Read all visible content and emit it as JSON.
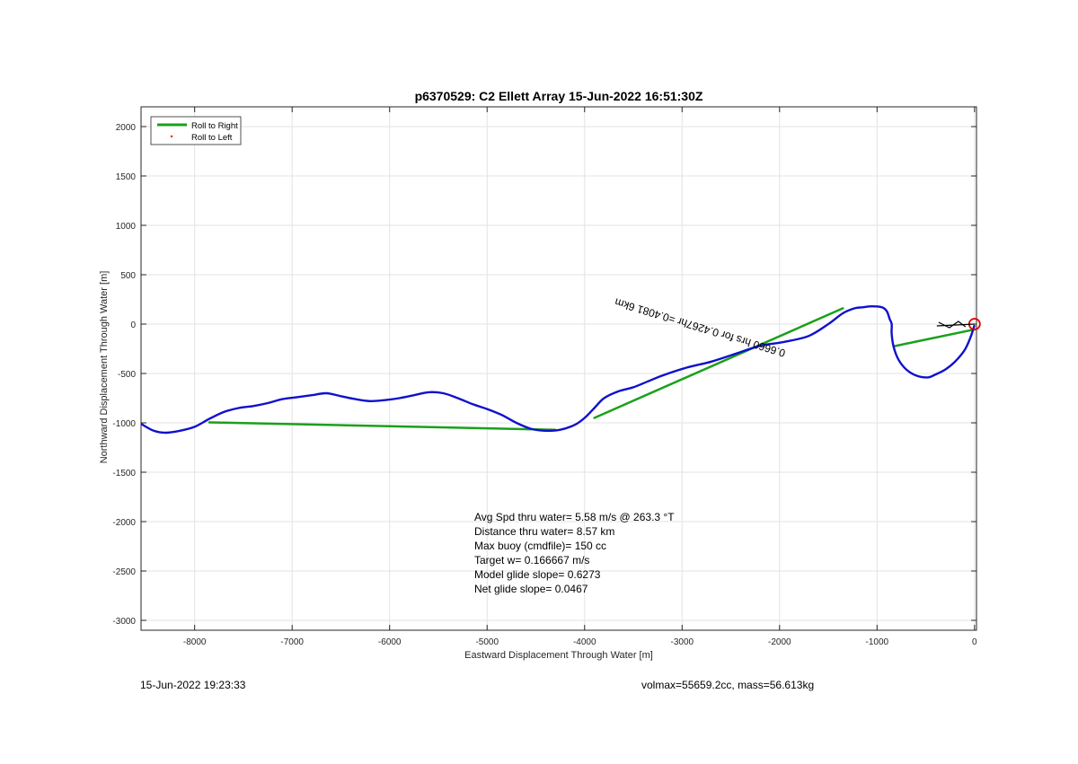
{
  "chart_data": {
    "type": "line",
    "title": "p6370529: C2 Ellett Array 15-Jun-2022 16:51:30Z",
    "xlabel": "Eastward Displacement Through Water [m]",
    "ylabel": "Northward Displacement Through Water [m]",
    "xlim": [
      -8550,
      20
    ],
    "ylim": [
      -3100,
      2200
    ],
    "xticks": [
      -8000,
      -7000,
      -6000,
      -5000,
      -4000,
      -3000,
      -2000,
      -1000,
      0
    ],
    "yticks": [
      -3000,
      -2500,
      -2000,
      -1500,
      -1000,
      -500,
      0,
      500,
      1000,
      1500,
      2000
    ],
    "grid": true,
    "legend_placement": "top-left",
    "legend": [
      {
        "label": "Roll to Right",
        "color": "#1aa01a",
        "style": "line"
      },
      {
        "label": "Roll to Left",
        "color": "#ff0000",
        "style": "dot"
      }
    ],
    "series": [
      {
        "name": "track",
        "color": "#1010cc",
        "x": [
          0,
          -40,
          -100,
          -200,
          -300,
          -400,
          -480,
          -600,
          -700,
          -780,
          -830,
          -850,
          -850,
          -870,
          -900,
          -950,
          -1050,
          -1150,
          -1230,
          -1350,
          -1500,
          -1700,
          -1950,
          -2200,
          -2450,
          -2700,
          -2950,
          -3200,
          -3350,
          -3500,
          -3650,
          -3800,
          -3900,
          -4000,
          -4100,
          -4250,
          -4400,
          -4550,
          -4700,
          -4850,
          -5000,
          -5150,
          -5300,
          -5450,
          -5600,
          -5750,
          -5900,
          -6050,
          -6200,
          -6350,
          -6500,
          -6650,
          -6800,
          -6950,
          -7100,
          -7250,
          -7400,
          -7550,
          -7700,
          -7850,
          -8000,
          -8150,
          -8300,
          -8420,
          -8550
        ],
        "y": [
          -10,
          -130,
          -260,
          -380,
          -460,
          -510,
          -540,
          -520,
          -460,
          -360,
          -230,
          -100,
          0,
          50,
          130,
          170,
          180,
          170,
          160,
          110,
          0,
          -120,
          -180,
          -220,
          -300,
          -380,
          -440,
          -520,
          -580,
          -640,
          -680,
          -750,
          -850,
          -950,
          -1020,
          -1070,
          -1080,
          -1060,
          -1000,
          -920,
          -860,
          -810,
          -750,
          -700,
          -690,
          -720,
          -750,
          -770,
          -780,
          -760,
          -730,
          -700,
          -720,
          -740,
          -760,
          -800,
          -830,
          -850,
          -890,
          -960,
          -1040,
          -1080,
          -1100,
          -1080,
          -1010
        ]
      },
      {
        "name": "Roll to Right",
        "color": "#1aa01a",
        "segments": [
          {
            "x": [
              -5,
              -830
            ],
            "y": [
              -55,
              -225
            ]
          },
          {
            "x": [
              -1350,
              -3900
            ],
            "y": [
              160,
              -950
            ]
          },
          {
            "x": [
              -4300,
              -7850
            ],
            "y": [
              -1070,
              -995
            ]
          }
        ]
      }
    ],
    "annotation_rotated": "0.6660 hrs for 0.4267hr =0.4081 6km",
    "stats_box": [
      "Avg Spd thru water=  5.58 m/s @ 263.3 °T",
      "Distance thru water=  8.57 km",
      "Max buoy (cmdfile)= 150 cc",
      "Target w= 0.166667 m/s",
      "Model glide slope= 0.6273",
      "Net glide slope= 0.0467"
    ]
  },
  "footer": {
    "left": "15-Jun-2022 19:23:33",
    "right": "volmax=55659.2cc, mass=56.613kg"
  }
}
